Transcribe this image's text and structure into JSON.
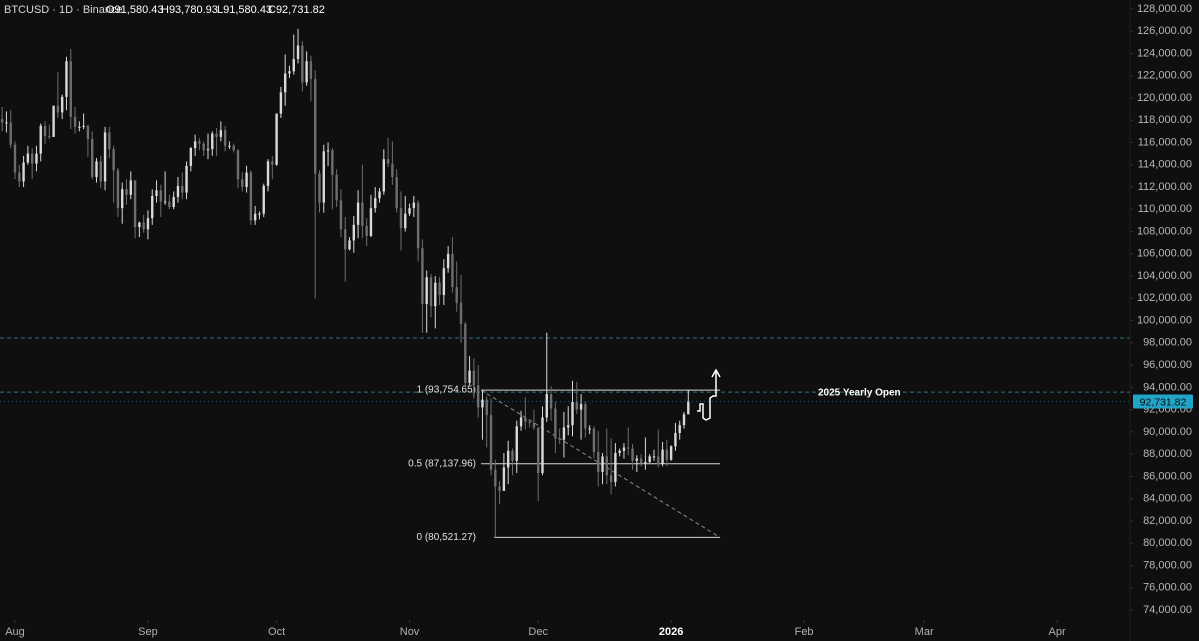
{
  "header": {
    "symbol": "BTCUSD · 1D · Binance",
    "ohlc": [
      "O91,580.43",
      "H93,780.93",
      "L91,580.43",
      "C92,731.82"
    ]
  },
  "chart_data": {
    "type": "candlestick",
    "xlim": [
      -3.5,
      260
    ],
    "xticks": [
      {
        "value": 0,
        "label": "Aug"
      },
      {
        "value": 31,
        "label": "Sep"
      },
      {
        "value": 61,
        "label": "Oct"
      },
      {
        "value": 92,
        "label": "Nov"
      },
      {
        "value": 122,
        "label": "Dec"
      },
      {
        "value": 153,
        "label": "2026"
      },
      {
        "value": 184,
        "label": "Feb"
      },
      {
        "value": 212,
        "label": "Mar"
      },
      {
        "value": 243,
        "label": "Apr"
      }
    ],
    "ylim": [
      73100,
      128800
    ],
    "yticks": [
      {
        "value": 74000,
        "label": "74,000.00"
      },
      {
        "value": 76000,
        "label": "76,000.00"
      },
      {
        "value": 78000,
        "label": "78,000.00"
      },
      {
        "value": 80000,
        "label": "80,000.00"
      },
      {
        "value": 82000,
        "label": "82,000.00"
      },
      {
        "value": 84000,
        "label": "84,000.00"
      },
      {
        "value": 86000,
        "label": "86,000.00"
      },
      {
        "value": 88000,
        "label": "88,000.00"
      },
      {
        "value": 90000,
        "label": "90,000.00"
      },
      {
        "value": 92000,
        "label": "92,000.00"
      },
      {
        "value": 94000,
        "label": "94,000.00"
      },
      {
        "value": 96000,
        "label": "96,000.00"
      },
      {
        "value": 98000,
        "label": "98,000.00"
      },
      {
        "value": 100000,
        "label": "100,000.00"
      },
      {
        "value": 102000,
        "label": "102,000.00"
      },
      {
        "value": 104000,
        "label": "104,000.00"
      },
      {
        "value": 106000,
        "label": "106,000.00"
      },
      {
        "value": 108000,
        "label": "108,000.00"
      },
      {
        "value": 110000,
        "label": "110,000.00"
      },
      {
        "value": 112000,
        "label": "112,000.00"
      },
      {
        "value": 114000,
        "label": "114,000.00"
      },
      {
        "value": 116000,
        "label": "116,000.00"
      },
      {
        "value": 118000,
        "label": "118,000.00"
      },
      {
        "value": 120000,
        "label": "120,000.00"
      },
      {
        "value": 122000,
        "label": "122,000.00"
      },
      {
        "value": 124000,
        "label": "124,000.00"
      },
      {
        "value": 126000,
        "label": "126,000.00"
      },
      {
        "value": 128000,
        "label": "128,000.00"
      }
    ],
    "up_color": "#d9d9d9",
    "down_color": "#6e6e6e",
    "open": [
      118100,
      117800,
      117800,
      115800,
      113300,
      112500,
      114200,
      115000,
      114100,
      115000,
      117500,
      116600,
      116500,
      119300,
      118700,
      120100,
      123300,
      118300,
      117400,
      117400,
      117500,
      116300,
      112900,
      114300,
      112500,
      116900,
      115400,
      113500,
      110100,
      111800,
      111300,
      112600,
      108400,
      108800,
      108200,
      109200,
      111200,
      111700,
      110700,
      110700,
      110200,
      111100,
      112100,
      111500,
      113900,
      115500,
      116100,
      115900,
      115300,
      115400,
      116800,
      116500,
      117100,
      115700,
      115700,
      115300,
      112700,
      112000,
      113300,
      109000,
      109600,
      109600,
      112100,
      114300,
      114000,
      118600,
      120500,
      122200,
      122400,
      123500,
      124700,
      121400,
      123300,
      121700,
      113200,
      110600,
      115200,
      115300,
      113100,
      110800,
      108200,
      106400,
      107200,
      108600,
      110600,
      108500,
      107600,
      110100,
      111000,
      111600,
      114500,
      114100,
      112900,
      110100,
      108300,
      109600,
      110100,
      110600,
      106500,
      101500,
      103900,
      101300,
      103400,
      102300,
      104700,
      106000,
      103000,
      101600,
      99700,
      94400,
      95500,
      94200,
      92200,
      92900,
      91500,
      86600,
      85100,
      84700,
      86800,
      88300,
      87400,
      90500,
      91300,
      90900,
      90800,
      90400,
      86300,
      91300,
      93400,
      92100,
      89400,
      89300,
      90400,
      90600,
      92700,
      92000,
      92500,
      90300,
      90300,
      88200,
      86400,
      87800,
      86100,
      85500,
      88100,
      88300,
      88600,
      88500,
      87400,
      87600,
      87200,
      87300,
      87800,
      87800,
      87100,
      88400,
      87500,
      88700,
      89900,
      90600,
      91580.43
    ],
    "high": [
      119200,
      118800,
      118900,
      116100,
      114000,
      114800,
      115700,
      115500,
      115700,
      117700,
      117900,
      117600,
      119300,
      122300,
      120300,
      123700,
      124400,
      119200,
      117900,
      118600,
      117600,
      117000,
      114600,
      114800,
      117400,
      117400,
      115700,
      113700,
      112400,
      112700,
      113400,
      112600,
      108900,
      109500,
      109900,
      111800,
      112600,
      112200,
      113400,
      111300,
      111600,
      112900,
      113300,
      114300,
      115600,
      116700,
      116400,
      116100,
      116800,
      117000,
      117300,
      117900,
      117500,
      116100,
      115900,
      115400,
      113300,
      113900,
      113500,
      110300,
      109800,
      112300,
      114500,
      114800,
      118600,
      121000,
      123900,
      122900,
      125700,
      126200,
      125100,
      124200,
      123800,
      122500,
      113500,
      115800,
      116000,
      115500,
      113600,
      111800,
      109300,
      107500,
      109400,
      111700,
      114000,
      109200,
      111300,
      112000,
      111900,
      115400,
      116400,
      116100,
      113600,
      111600,
      111200,
      110500,
      111200,
      110800,
      107300,
      104500,
      104200,
      104000,
      103900,
      105500,
      106700,
      107500,
      105300,
      104100,
      99900,
      96800,
      96600,
      96000,
      93800,
      93200,
      93000,
      87500,
      85600,
      88100,
      89200,
      88500,
      91000,
      91900,
      93100,
      91100,
      92000,
      90400,
      92300,
      98900,
      94100,
      92700,
      90300,
      91800,
      92300,
      94600,
      94500,
      93400,
      92700,
      90600,
      90500,
      90100,
      88100,
      90300,
      89400,
      89000,
      88500,
      89000,
      90400,
      88900,
      87900,
      88000,
      89500,
      88000,
      88400,
      90200,
      89100,
      89300,
      88800,
      90800,
      91000,
      91800,
      93780.93
    ],
    "low": [
      117000,
      116900,
      115500,
      112700,
      112000,
      112000,
      114000,
      112700,
      113400,
      114300,
      115900,
      116300,
      116500,
      118200,
      118100,
      118900,
      117200,
      116800,
      117000,
      117200,
      114700,
      112700,
      112400,
      111900,
      111700,
      114600,
      110600,
      109300,
      108700,
      110400,
      110900,
      107400,
      107500,
      107900,
      107300,
      108600,
      110600,
      109300,
      110400,
      110000,
      110000,
      110600,
      110900,
      110900,
      113400,
      114800,
      115300,
      114800,
      114500,
      114800,
      114800,
      116100,
      115200,
      115400,
      115100,
      111900,
      111600,
      111500,
      108600,
      108600,
      109100,
      109300,
      111600,
      112700,
      113900,
      118200,
      119300,
      121800,
      122100,
      123100,
      120600,
      121100,
      119700,
      102000,
      109700,
      109700,
      113900,
      110000,
      110200,
      107500,
      103500,
      106300,
      106100,
      107400,
      107400,
      106700,
      107500,
      109700,
      110600,
      111300,
      113800,
      112200,
      109700,
      106300,
      108000,
      109400,
      109300,
      105300,
      98900,
      98900,
      100300,
      99300,
      101400,
      101400,
      104300,
      102500,
      100800,
      98000,
      94000,
      94200,
      93000,
      91300,
      89300,
      88600,
      86100,
      80521.27,
      83500,
      84700,
      85300,
      86100,
      86300,
      90100,
      90200,
      90400,
      90200,
      83800,
      86100,
      90900,
      91000,
      88100,
      88900,
      87700,
      89700,
      89600,
      91600,
      89300,
      89500,
      89800,
      87600,
      85100,
      85300,
      85300,
      84400,
      85100,
      87800,
      87600,
      87900,
      86600,
      86400,
      86900,
      86600,
      87200,
      87400,
      86800,
      86900,
      86900,
      87400,
      88300,
      89300,
      90300,
      91580.43
    ],
    "close": [
      117800,
      117800,
      115800,
      113300,
      112500,
      114200,
      115000,
      114100,
      115000,
      117500,
      116600,
      116500,
      119300,
      118700,
      120100,
      123300,
      118300,
      117400,
      117400,
      117500,
      116300,
      112900,
      114300,
      112500,
      116900,
      115400,
      113500,
      110100,
      111800,
      111300,
      112600,
      108400,
      108800,
      108200,
      109200,
      111200,
      111700,
      110700,
      110700,
      110200,
      111100,
      112100,
      111500,
      113900,
      115500,
      116100,
      115900,
      115300,
      115400,
      116800,
      116500,
      117100,
      115700,
      115700,
      115300,
      112700,
      112000,
      113300,
      109000,
      109600,
      109600,
      112100,
      114300,
      114000,
      118600,
      120500,
      122200,
      122400,
      123500,
      124700,
      121400,
      123300,
      121700,
      113200,
      110600,
      115200,
      115300,
      113100,
      110800,
      108200,
      106400,
      107200,
      108600,
      110600,
      108500,
      107600,
      110100,
      111000,
      111600,
      114500,
      114100,
      112900,
      110100,
      108300,
      109600,
      110100,
      110600,
      106500,
      101500,
      103900,
      101300,
      103400,
      102300,
      104700,
      106000,
      103000,
      101600,
      99700,
      94400,
      95500,
      94200,
      92200,
      92900,
      91500,
      86600,
      85100,
      84700,
      86800,
      88300,
      87400,
      90500,
      91300,
      90900,
      90800,
      90400,
      86300,
      91300,
      93400,
      92100,
      89400,
      89300,
      90400,
      90600,
      92700,
      92000,
      92500,
      90300,
      90300,
      88200,
      86400,
      87800,
      86100,
      85500,
      88100,
      88300,
      88600,
      88500,
      87400,
      87600,
      87200,
      87300,
      87800,
      87800,
      87100,
      88400,
      87500,
      88700,
      89900,
      90600,
      91580.43,
      92731.82
    ],
    "last_price_label": "92,731.82",
    "levels": [
      {
        "value": 98440
      },
      {
        "value": 93576,
        "label": "2025 Yearly Open"
      }
    ],
    "fib": [
      {
        "value": 93754.65,
        "label": "1 (93,754.65)"
      },
      {
        "value": 87137.96,
        "label": "0.5 (87,137.96)"
      },
      {
        "value": 80521.27,
        "label": "0 (80,521.27)"
      }
    ]
  }
}
